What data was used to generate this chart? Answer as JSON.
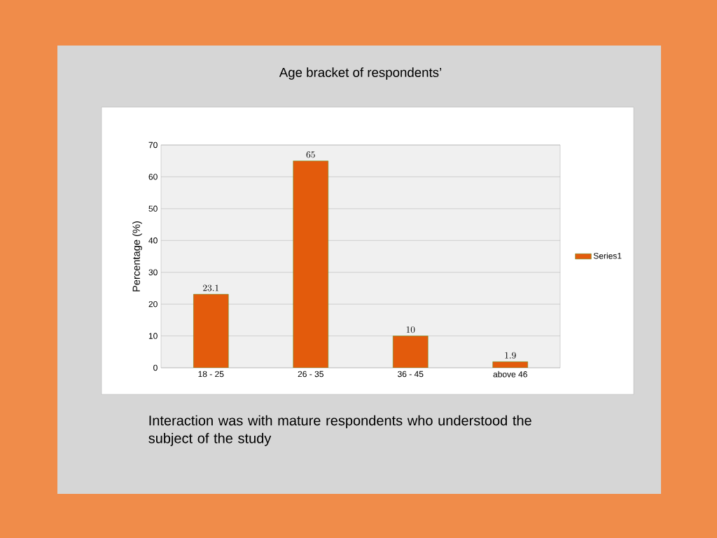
{
  "chart_data": {
    "type": "bar",
    "title": "Age bracket of respondents’",
    "ylabel": "Percentage (%)",
    "categories": [
      "18 - 25",
      "26 - 35",
      "36 - 45",
      "above 46"
    ],
    "series": [
      {
        "name": "Series1",
        "color": "#e35b0c",
        "values": [
          23.1,
          65,
          10,
          1.9
        ]
      }
    ],
    "ylim": [
      0,
      70
    ],
    "yticks": [
      0,
      10,
      20,
      30,
      40,
      50,
      60,
      70
    ],
    "grid": "y",
    "legend": "right",
    "data_labels": true,
    "annotations": [
      "Interaction was with mature respondents who understood the subject of the study"
    ]
  }
}
